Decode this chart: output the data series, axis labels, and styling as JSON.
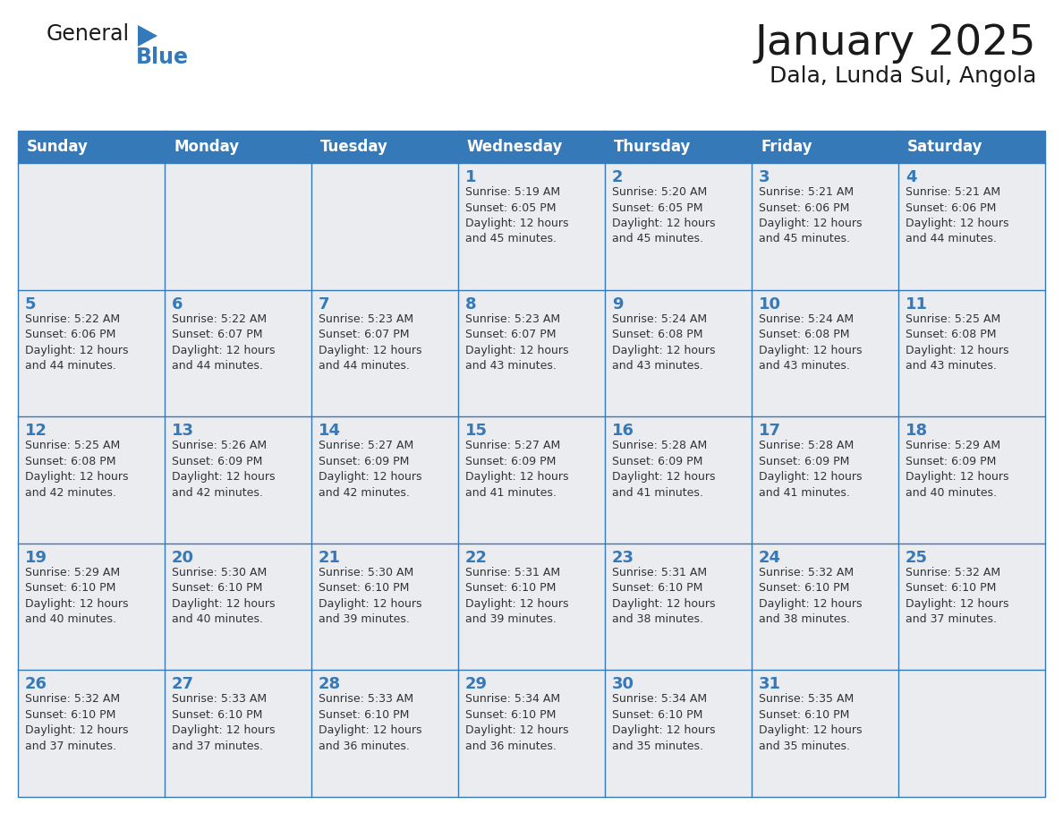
{
  "title": "January 2025",
  "subtitle": "Dala, Lunda Sul, Angola",
  "days_of_week": [
    "Sunday",
    "Monday",
    "Tuesday",
    "Wednesday",
    "Thursday",
    "Friday",
    "Saturday"
  ],
  "header_bg_color": "#3579B8",
  "header_text_color": "#FFFFFF",
  "cell_bg_color": "#EAECF0",
  "border_color": "#3579B8",
  "day_number_color": "#3579B8",
  "text_color": "#333333",
  "title_color": "#1a1a1a",
  "subtitle_color": "#1a1a1a",
  "logo_general_color": "#1a1a1a",
  "logo_blue_color": "#3579B8",
  "weeks": [
    [
      {
        "day": 0,
        "info": ""
      },
      {
        "day": 0,
        "info": ""
      },
      {
        "day": 0,
        "info": ""
      },
      {
        "day": 1,
        "info": "Sunrise: 5:19 AM\nSunset: 6:05 PM\nDaylight: 12 hours\nand 45 minutes."
      },
      {
        "day": 2,
        "info": "Sunrise: 5:20 AM\nSunset: 6:05 PM\nDaylight: 12 hours\nand 45 minutes."
      },
      {
        "day": 3,
        "info": "Sunrise: 5:21 AM\nSunset: 6:06 PM\nDaylight: 12 hours\nand 45 minutes."
      },
      {
        "day": 4,
        "info": "Sunrise: 5:21 AM\nSunset: 6:06 PM\nDaylight: 12 hours\nand 44 minutes."
      }
    ],
    [
      {
        "day": 5,
        "info": "Sunrise: 5:22 AM\nSunset: 6:06 PM\nDaylight: 12 hours\nand 44 minutes."
      },
      {
        "day": 6,
        "info": "Sunrise: 5:22 AM\nSunset: 6:07 PM\nDaylight: 12 hours\nand 44 minutes."
      },
      {
        "day": 7,
        "info": "Sunrise: 5:23 AM\nSunset: 6:07 PM\nDaylight: 12 hours\nand 44 minutes."
      },
      {
        "day": 8,
        "info": "Sunrise: 5:23 AM\nSunset: 6:07 PM\nDaylight: 12 hours\nand 43 minutes."
      },
      {
        "day": 9,
        "info": "Sunrise: 5:24 AM\nSunset: 6:08 PM\nDaylight: 12 hours\nand 43 minutes."
      },
      {
        "day": 10,
        "info": "Sunrise: 5:24 AM\nSunset: 6:08 PM\nDaylight: 12 hours\nand 43 minutes."
      },
      {
        "day": 11,
        "info": "Sunrise: 5:25 AM\nSunset: 6:08 PM\nDaylight: 12 hours\nand 43 minutes."
      }
    ],
    [
      {
        "day": 12,
        "info": "Sunrise: 5:25 AM\nSunset: 6:08 PM\nDaylight: 12 hours\nand 42 minutes."
      },
      {
        "day": 13,
        "info": "Sunrise: 5:26 AM\nSunset: 6:09 PM\nDaylight: 12 hours\nand 42 minutes."
      },
      {
        "day": 14,
        "info": "Sunrise: 5:27 AM\nSunset: 6:09 PM\nDaylight: 12 hours\nand 42 minutes."
      },
      {
        "day": 15,
        "info": "Sunrise: 5:27 AM\nSunset: 6:09 PM\nDaylight: 12 hours\nand 41 minutes."
      },
      {
        "day": 16,
        "info": "Sunrise: 5:28 AM\nSunset: 6:09 PM\nDaylight: 12 hours\nand 41 minutes."
      },
      {
        "day": 17,
        "info": "Sunrise: 5:28 AM\nSunset: 6:09 PM\nDaylight: 12 hours\nand 41 minutes."
      },
      {
        "day": 18,
        "info": "Sunrise: 5:29 AM\nSunset: 6:09 PM\nDaylight: 12 hours\nand 40 minutes."
      }
    ],
    [
      {
        "day": 19,
        "info": "Sunrise: 5:29 AM\nSunset: 6:10 PM\nDaylight: 12 hours\nand 40 minutes."
      },
      {
        "day": 20,
        "info": "Sunrise: 5:30 AM\nSunset: 6:10 PM\nDaylight: 12 hours\nand 40 minutes."
      },
      {
        "day": 21,
        "info": "Sunrise: 5:30 AM\nSunset: 6:10 PM\nDaylight: 12 hours\nand 39 minutes."
      },
      {
        "day": 22,
        "info": "Sunrise: 5:31 AM\nSunset: 6:10 PM\nDaylight: 12 hours\nand 39 minutes."
      },
      {
        "day": 23,
        "info": "Sunrise: 5:31 AM\nSunset: 6:10 PM\nDaylight: 12 hours\nand 38 minutes."
      },
      {
        "day": 24,
        "info": "Sunrise: 5:32 AM\nSunset: 6:10 PM\nDaylight: 12 hours\nand 38 minutes."
      },
      {
        "day": 25,
        "info": "Sunrise: 5:32 AM\nSunset: 6:10 PM\nDaylight: 12 hours\nand 37 minutes."
      }
    ],
    [
      {
        "day": 26,
        "info": "Sunrise: 5:32 AM\nSunset: 6:10 PM\nDaylight: 12 hours\nand 37 minutes."
      },
      {
        "day": 27,
        "info": "Sunrise: 5:33 AM\nSunset: 6:10 PM\nDaylight: 12 hours\nand 37 minutes."
      },
      {
        "day": 28,
        "info": "Sunrise: 5:33 AM\nSunset: 6:10 PM\nDaylight: 12 hours\nand 36 minutes."
      },
      {
        "day": 29,
        "info": "Sunrise: 5:34 AM\nSunset: 6:10 PM\nDaylight: 12 hours\nand 36 minutes."
      },
      {
        "day": 30,
        "info": "Sunrise: 5:34 AM\nSunset: 6:10 PM\nDaylight: 12 hours\nand 35 minutes."
      },
      {
        "day": 31,
        "info": "Sunrise: 5:35 AM\nSunset: 6:10 PM\nDaylight: 12 hours\nand 35 minutes."
      },
      {
        "day": 0,
        "info": ""
      }
    ]
  ]
}
